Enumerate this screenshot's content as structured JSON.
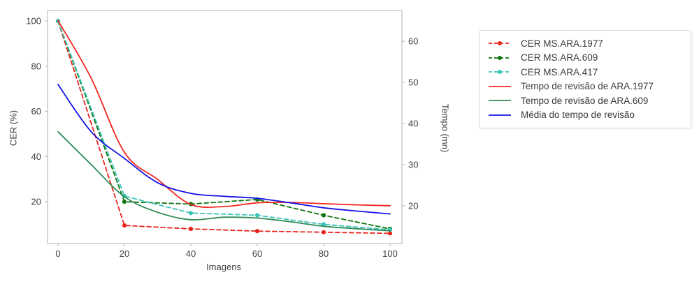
{
  "chart_data": {
    "type": "line",
    "title": "",
    "xlabel": "Imagens",
    "ylabel_left": "CER (%)",
    "ylabel_right": "Tempo (mn)",
    "grid": false,
    "legend_position": "outside-right",
    "x_axis": {
      "min": -3.16,
      "max": 103.58,
      "ticks": [
        0,
        20,
        40,
        60,
        80,
        100
      ]
    },
    "left_axis": {
      "min": 1.5,
      "max": 104.7,
      "ticks": [
        20,
        40,
        60,
        80,
        100
      ]
    },
    "right_axis": {
      "min": 10.8,
      "max": 67.5,
      "ticks": [
        20,
        30,
        40,
        50,
        60
      ]
    },
    "colors": {
      "axis": "#b0b0b0",
      "tick_text": "#3f3f3f",
      "background": "#ffffff",
      "legend_border": "#dcdcdc"
    },
    "series": [
      {
        "name": "CER MS.ARA.1977",
        "axis": "left",
        "style": "dashed",
        "marker": true,
        "color": "#e8251c",
        "x": [
          0,
          20,
          40,
          60,
          80,
          100
        ],
        "y": [
          100,
          9.5,
          8,
          7,
          6.5,
          6
        ]
      },
      {
        "name": "CER MS.ARA.609",
        "axis": "left",
        "style": "dashed",
        "marker": true,
        "color": "#117511",
        "x": [
          0,
          20,
          40,
          60,
          80,
          100
        ],
        "y": [
          100,
          20,
          19,
          21,
          14,
          8
        ]
      },
      {
        "name": "CER MS.ARA.417",
        "axis": "left",
        "style": "dashed",
        "marker": true,
        "color": "#3cc3b9",
        "x": [
          0,
          20,
          40,
          60,
          80,
          100
        ],
        "y": [
          100,
          22.5,
          15,
          14,
          10,
          7.6
        ]
      },
      {
        "name": "Tempo de revisão de ARA.1977",
        "axis": "right",
        "style": "solid",
        "marker": false,
        "color": "#f3261c",
        "x": [
          0,
          10,
          20,
          30,
          40,
          50,
          60,
          70,
          80,
          90,
          100
        ],
        "y": [
          65,
          51,
          33,
          26.4,
          20.3,
          19.8,
          20.7,
          20.8,
          20.5,
          20.2,
          20
        ]
      },
      {
        "name": "Tempo de revisão de ARA.609",
        "axis": "right",
        "style": "solid",
        "marker": false,
        "color": "#2e8b57",
        "x": [
          0,
          10,
          20,
          30,
          40,
          50,
          60,
          70,
          80,
          90,
          100
        ],
        "y": [
          38,
          30,
          22.2,
          18.4,
          16.6,
          17.2,
          17,
          16.1,
          15,
          14.4,
          13.9
        ]
      },
      {
        "name": "Média do tempo de revisão",
        "axis": "right",
        "style": "solid",
        "marker": false,
        "color": "#1313e8",
        "x": [
          0,
          10,
          20,
          30,
          40,
          50,
          60,
          70,
          80,
          90,
          100
        ],
        "y": [
          49.5,
          38,
          31.5,
          25.6,
          23,
          22.3,
          21.8,
          20.7,
          19.5,
          18.7,
          18
        ]
      }
    ]
  },
  "legend": {
    "items": [
      {
        "label": "CER MS.ARA.1977"
      },
      {
        "label": "CER MS.ARA.609"
      },
      {
        "label": "CER MS.ARA.417"
      },
      {
        "label": "Tempo de revisão de ARA.1977"
      },
      {
        "label": "Tempo de revisão de ARA.609"
      },
      {
        "label": "Média do tempo de revisão"
      }
    ]
  }
}
